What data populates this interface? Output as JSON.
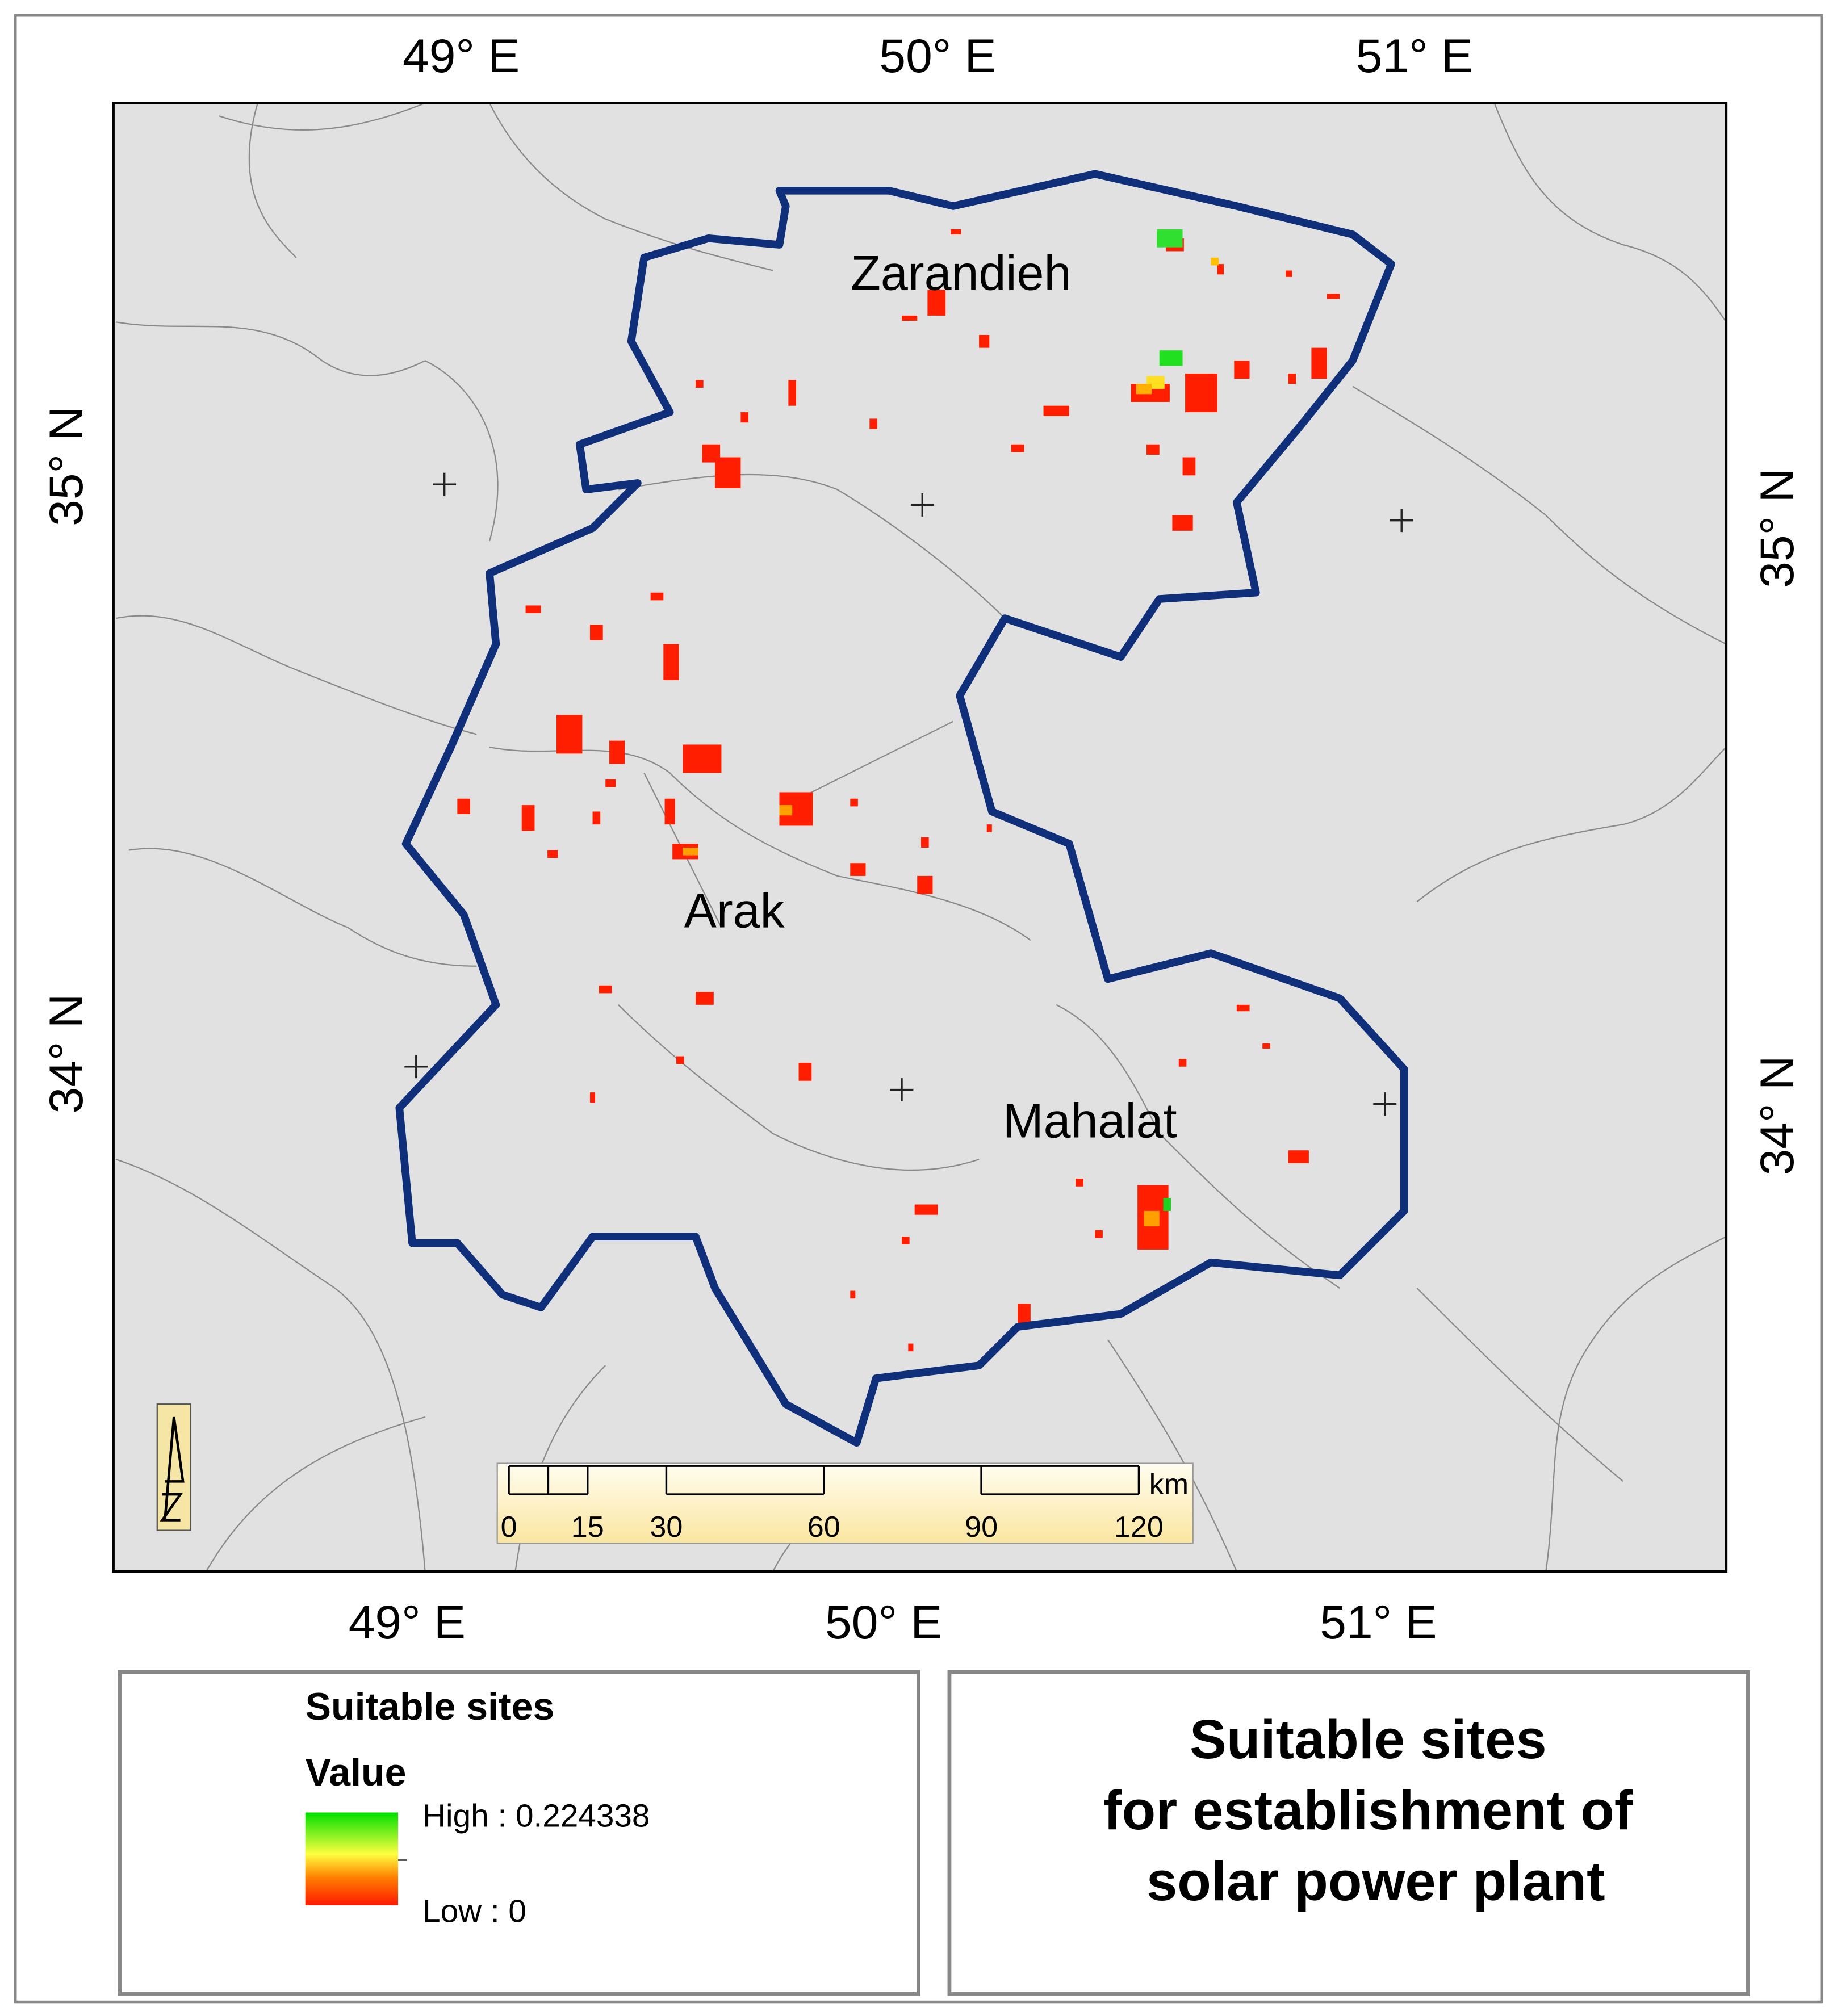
{
  "graticule": {
    "top": [
      "49° E",
      "50° E",
      "51° E"
    ],
    "bottom": [
      "49° E",
      "50° E",
      "51° E"
    ],
    "left": [
      "35° N",
      "34° N"
    ],
    "right": [
      "35° N",
      "34° N"
    ]
  },
  "places": [
    "Zarandieh",
    "Arak",
    "Mahalat"
  ],
  "scale_bar": {
    "ticks": [
      0,
      15,
      30,
      60,
      90,
      120
    ],
    "unit": "km"
  },
  "legend": {
    "title": "Suitable sites",
    "field": "Value",
    "high": "High : 0.224338",
    "low": "Low : 0"
  },
  "title": [
    "Suitable sites",
    "for establishment of",
    "solar power plant"
  ]
}
